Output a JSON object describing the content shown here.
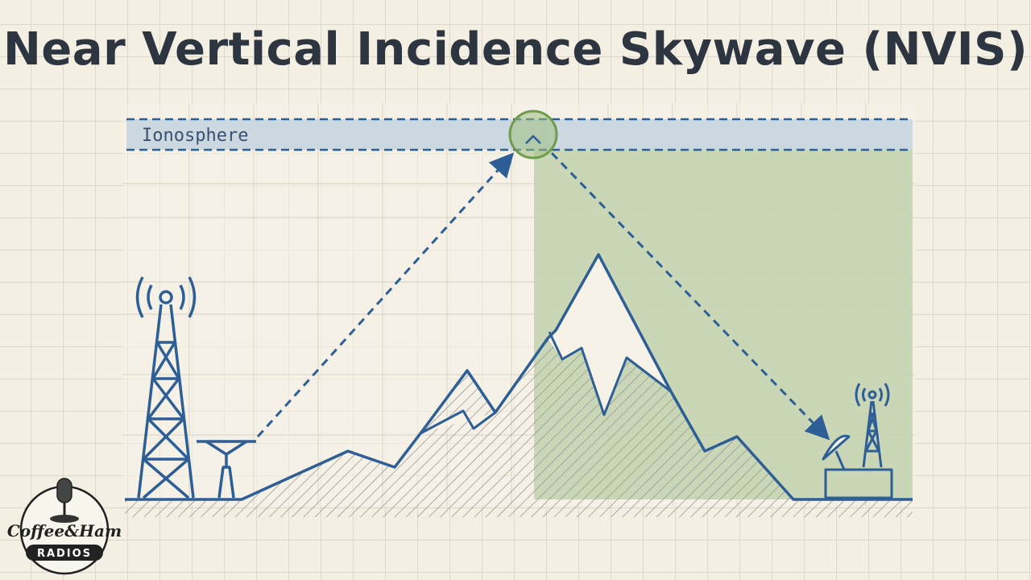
{
  "title": "Near Vertical Incidence Skywave (NVIS)",
  "diagram": {
    "layer_label": "Ionosphere",
    "colors": {
      "line": "#2e5e96",
      "ionosphere_band": "#c9d6e0",
      "coverage_zone": "#c2d2ae",
      "reflection_point": "#6f9b4c",
      "text": "#2d3540"
    }
  },
  "logo": {
    "line1": "Coffee&Ham",
    "line2": "RADIOS"
  }
}
